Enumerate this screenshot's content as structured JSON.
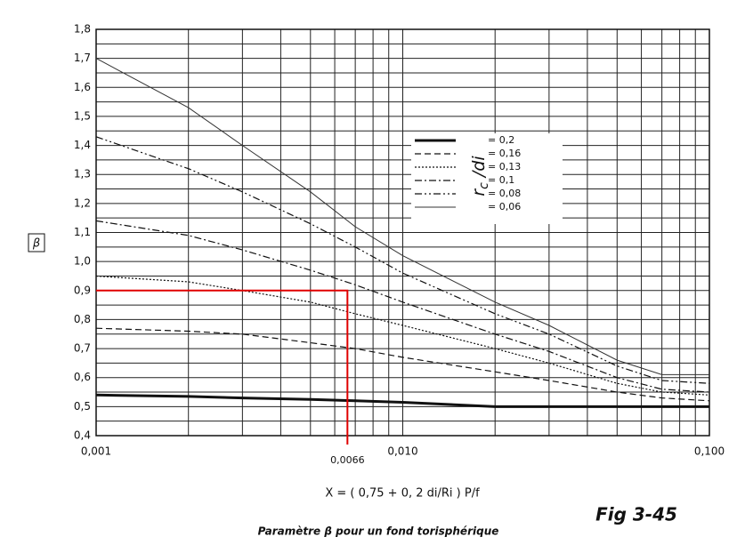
{
  "chart_data": {
    "type": "line",
    "x_label": "X = ( 0,75 + 0, 2 di/Ri ) P/f",
    "y_label": "β",
    "caption": "Paramètre β pour un fond torisphérique",
    "figure_label": "Fig 3-45",
    "x_log": true,
    "grid": true,
    "xlim": [
      0.001,
      0.1
    ],
    "ylim": [
      0.4,
      1.8
    ],
    "xticks": [
      {
        "value": 0.001,
        "label": "0,001"
      },
      {
        "value": 0.01,
        "label": "0,010"
      },
      {
        "value": 0.1,
        "label": "0,100"
      }
    ],
    "xminorticks": [
      0.002,
      0.003,
      0.004,
      0.005,
      0.006,
      0.007,
      0.008,
      0.009,
      0.02,
      0.03,
      0.04,
      0.05,
      0.06,
      0.07,
      0.08,
      0.09
    ],
    "yticks": [
      {
        "value": 0.4,
        "label": "0,4"
      },
      {
        "value": 0.5,
        "label": "0,5"
      },
      {
        "value": 0.6,
        "label": "0,6"
      },
      {
        "value": 0.7,
        "label": "0,7"
      },
      {
        "value": 0.8,
        "label": "0,8"
      },
      {
        "value": 0.9,
        "label": "0,9"
      },
      {
        "value": 1.0,
        "label": "1,0"
      },
      {
        "value": 1.1,
        "label": "1,1"
      },
      {
        "value": 1.2,
        "label": "1,2"
      },
      {
        "value": 1.3,
        "label": "1,3"
      },
      {
        "value": 1.4,
        "label": "1,4"
      },
      {
        "value": 1.5,
        "label": "1,5"
      },
      {
        "value": 1.6,
        "label": "1,6"
      },
      {
        "value": 1.7,
        "label": "1,7"
      },
      {
        "value": 1.8,
        "label": "1,8"
      }
    ],
    "yminorticks": [
      0.45,
      0.55,
      0.65,
      0.75,
      0.85,
      0.95,
      1.05,
      1.15,
      1.25,
      1.35,
      1.45,
      1.55,
      1.65,
      1.75
    ],
    "legend_title": {
      "main": "r",
      "sub": "c",
      "rest": " /di"
    },
    "x": [
      0.001,
      0.002,
      0.003,
      0.005,
      0.007,
      0.01,
      0.02,
      0.03,
      0.05,
      0.07,
      0.1
    ],
    "series": [
      {
        "name": "= 0,2",
        "color": "#111",
        "width": 3,
        "dash": "",
        "values": [
          0.54,
          0.535,
          0.53,
          0.525,
          0.52,
          0.515,
          0.5,
          0.5,
          0.5,
          0.5,
          0.5
        ]
      },
      {
        "name": "= 0,16",
        "color": "#111",
        "width": 1.2,
        "dash": "7 4",
        "values": [
          0.77,
          0.76,
          0.75,
          0.72,
          0.7,
          0.67,
          0.62,
          0.59,
          0.55,
          0.53,
          0.52
        ]
      },
      {
        "name": "= 0,13",
        "color": "#111",
        "width": 1.2,
        "dash": "2 2",
        "values": [
          0.95,
          0.93,
          0.9,
          0.86,
          0.82,
          0.78,
          0.7,
          0.65,
          0.58,
          0.55,
          0.54
        ]
      },
      {
        "name": "= 0,1",
        "color": "#111",
        "width": 1.2,
        "dash": "8 3 2 3",
        "values": [
          1.14,
          1.09,
          1.04,
          0.97,
          0.92,
          0.86,
          0.75,
          0.69,
          0.6,
          0.56,
          0.55
        ]
      },
      {
        "name": "= 0,08",
        "color": "#111",
        "width": 1.2,
        "dash": "8 3 2 3 2 3",
        "values": [
          1.43,
          1.32,
          1.24,
          1.13,
          1.05,
          0.96,
          0.82,
          0.75,
          0.64,
          0.59,
          0.58
        ]
      },
      {
        "name": "= 0,06",
        "color": "#333",
        "width": 1,
        "dash": "",
        "values": [
          1.7,
          1.53,
          1.4,
          1.24,
          1.12,
          1.02,
          0.86,
          0.78,
          0.66,
          0.61,
          0.61
        ]
      }
    ],
    "annotation": {
      "x": 0.0066,
      "y": 0.9,
      "label": "0,0066",
      "color": "#e00000"
    }
  }
}
